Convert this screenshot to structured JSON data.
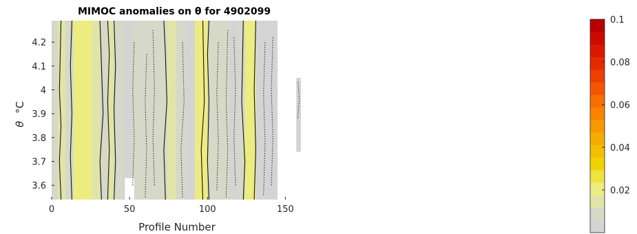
{
  "chart_data": {
    "type": "heatmap",
    "title": "MIMOC anomalies on θ  for 4902099",
    "xlabel": "Profile Number",
    "ylabel_symbol": "θ",
    "ylabel_unit": "°C",
    "xlim": [
      0,
      160
    ],
    "ylim": [
      3.54,
      4.29
    ],
    "x_ticks": [
      {
        "value": 0,
        "label": "0"
      },
      {
        "value": 50,
        "label": "50"
      },
      {
        "value": 100,
        "label": "100"
      },
      {
        "value": 150,
        "label": "150"
      }
    ],
    "y_ticks": [
      {
        "value": 3.6,
        "label": "3.6"
      },
      {
        "value": 3.7,
        "label": "3.7"
      },
      {
        "value": 3.8,
        "label": "3.8"
      },
      {
        "value": 3.9,
        "label": "3.9"
      },
      {
        "value": 4.0,
        "label": "4"
      },
      {
        "value": 4.1,
        "label": "4.1"
      },
      {
        "value": 4.2,
        "label": "4.2"
      }
    ],
    "colorbar": {
      "range": [
        0,
        0.1
      ],
      "ticks": [
        {
          "value": 0.02,
          "label": "0.02"
        },
        {
          "value": 0.04,
          "label": "0.04"
        },
        {
          "value": 0.06,
          "label": "0.06"
        },
        {
          "value": 0.08,
          "label": "0.08"
        },
        {
          "value": 0.1,
          "label": "0.1"
        }
      ],
      "colors": [
        "#d4d4d4",
        "#d6d8c8",
        "#e0e4a8",
        "#ecec80",
        "#f0e240",
        "#f0d200",
        "#f2c000",
        "#f4ac00",
        "#f69800",
        "#f88400",
        "#f86e00",
        "#f45600",
        "#ee3e00",
        "#e62a00",
        "#dc1800",
        "#cc0a00",
        "#b80000"
      ]
    },
    "profile_bands": [
      {
        "x0": 0,
        "x1": 4,
        "value": 0.006
      },
      {
        "x0": 4,
        "x1": 9,
        "value": 0.016
      },
      {
        "x0": 9,
        "x1": 14,
        "value": 0.01
      },
      {
        "x0": 14,
        "x1": 19,
        "value": 0.019
      },
      {
        "x0": 19,
        "x1": 26,
        "value": 0.022
      },
      {
        "x0": 26,
        "x1": 31,
        "value": 0.017
      },
      {
        "x0": 31,
        "x1": 36,
        "value": 0.009
      },
      {
        "x0": 36,
        "x1": 40,
        "value": 0.014
      },
      {
        "x0": 40,
        "x1": 46,
        "value": 0.007
      },
      {
        "x0": 46,
        "x1": 52,
        "value": 0.005
      },
      {
        "x0": 52,
        "x1": 58,
        "value": 0.008
      },
      {
        "x0": 58,
        "x1": 64,
        "value": 0.006
      },
      {
        "x0": 64,
        "x1": 70,
        "value": 0.009
      },
      {
        "x0": 70,
        "x1": 74,
        "value": 0.007
      },
      {
        "x0": 74,
        "x1": 80,
        "value": 0.013
      },
      {
        "x0": 80,
        "x1": 86,
        "value": 0.006
      },
      {
        "x0": 86,
        "x1": 92,
        "value": 0.005
      },
      {
        "x0": 92,
        "x1": 100,
        "value": 0.018
      },
      {
        "x0": 100,
        "x1": 108,
        "value": 0.006
      },
      {
        "x0": 108,
        "x1": 114,
        "value": 0.008
      },
      {
        "x0": 114,
        "x1": 120,
        "value": 0.005
      },
      {
        "x0": 120,
        "x1": 124,
        "value": 0.007
      },
      {
        "x0": 124,
        "x1": 131,
        "value": 0.02
      },
      {
        "x0": 131,
        "x1": 138,
        "value": 0.005
      },
      {
        "x0": 138,
        "x1": 145,
        "value": 0.004
      }
    ],
    "missing_regions": [
      {
        "x0": 145,
        "x1": 157,
        "y0": 3.54,
        "y1": 4.29
      },
      {
        "x0": 157,
        "x1": 160,
        "y0": 4.05,
        "y1": 4.29
      },
      {
        "x0": 157,
        "x1": 160,
        "y0": 3.54,
        "y1": 3.74
      },
      {
        "x0": 47,
        "x1": 53,
        "y0": 3.54,
        "y1": 3.63
      }
    ],
    "contours_solid": [
      [
        [
          6,
          3.54
        ],
        [
          5,
          3.7
        ],
        [
          6,
          3.85
        ],
        [
          5,
          4.0
        ],
        [
          6,
          4.29
        ]
      ],
      [
        [
          13,
          3.54
        ],
        [
          12,
          3.72
        ],
        [
          13,
          3.9
        ],
        [
          12,
          4.1
        ],
        [
          13,
          4.29
        ]
      ],
      [
        [
          32,
          3.54
        ],
        [
          31,
          3.7
        ],
        [
          33,
          3.9
        ],
        [
          32,
          4.1
        ],
        [
          31,
          4.29
        ]
      ],
      [
        [
          36,
          3.54
        ],
        [
          37,
          3.75
        ],
        [
          36,
          3.95
        ],
        [
          37,
          4.15
        ],
        [
          36,
          4.29
        ]
      ],
      [
        [
          40,
          3.54
        ],
        [
          41,
          3.7
        ],
        [
          40,
          3.92
        ],
        [
          41,
          4.1
        ],
        [
          40,
          4.29
        ]
      ],
      [
        [
          73,
          3.54
        ],
        [
          72,
          3.75
        ],
        [
          74,
          3.95
        ],
        [
          73,
          4.15
        ],
        [
          72,
          4.29
        ]
      ],
      [
        [
          97,
          3.54
        ],
        [
          96,
          3.75
        ],
        [
          98,
          3.95
        ],
        [
          97,
          4.29
        ]
      ],
      [
        [
          101,
          3.54
        ],
        [
          100,
          3.7
        ],
        [
          101,
          3.95
        ],
        [
          100,
          4.15
        ],
        [
          101,
          4.29
        ]
      ],
      [
        [
          123,
          3.54
        ],
        [
          124,
          3.7
        ],
        [
          122,
          3.95
        ],
        [
          123,
          4.29
        ]
      ],
      [
        [
          130,
          3.54
        ],
        [
          131,
          3.75
        ],
        [
          130,
          4.0
        ],
        [
          131,
          4.29
        ]
      ]
    ],
    "contours_dotted": [
      [
        [
          52,
          3.6
        ],
        [
          53,
          3.8
        ],
        [
          52,
          4.0
        ],
        [
          53,
          4.2
        ]
      ],
      [
        [
          60,
          3.55
        ],
        [
          61,
          3.75
        ],
        [
          60,
          3.95
        ],
        [
          61,
          4.15
        ]
      ],
      [
        [
          66,
          3.6
        ],
        [
          65,
          3.8
        ],
        [
          66,
          4.0
        ],
        [
          65,
          4.25
        ]
      ],
      [
        [
          84,
          3.55
        ],
        [
          83,
          3.75
        ],
        [
          85,
          3.95
        ],
        [
          84,
          4.2
        ]
      ],
      [
        [
          106,
          3.58
        ],
        [
          107,
          3.78
        ],
        [
          106,
          3.98
        ],
        [
          107,
          4.2
        ]
      ],
      [
        [
          112,
          3.55
        ],
        [
          113,
          3.75
        ],
        [
          112,
          3.95
        ],
        [
          113,
          4.25
        ]
      ],
      [
        [
          118,
          3.6
        ],
        [
          117,
          3.8
        ],
        [
          118,
          4.0
        ],
        [
          117,
          4.22
        ]
      ],
      [
        [
          136,
          3.56
        ],
        [
          137,
          3.78
        ],
        [
          136,
          3.98
        ],
        [
          137,
          4.2
        ]
      ],
      [
        [
          141,
          3.6
        ],
        [
          142,
          3.8
        ],
        [
          141,
          4.0
        ],
        [
          142,
          4.22
        ]
      ],
      [
        [
          158,
          3.88
        ],
        [
          159,
          3.96
        ],
        [
          158,
          4.04
        ]
      ]
    ]
  }
}
